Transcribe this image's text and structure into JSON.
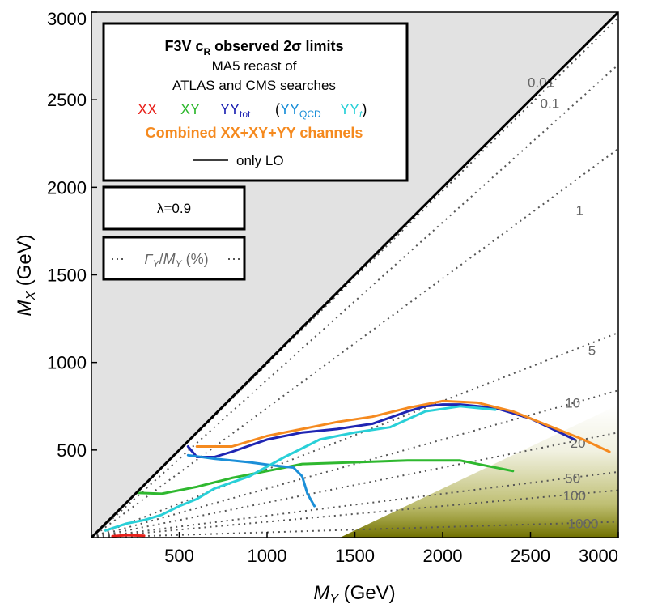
{
  "chart_data": {
    "type": "line",
    "title": "F3V c_R observed 2σ limits",
    "subtitle_lines": [
      "MA5 recast of",
      "ATLAS and CMS searches"
    ],
    "xlabel": "M_Y (GeV)",
    "ylabel": "M_X (GeV)",
    "xlim": [
      0,
      3000
    ],
    "ylim": [
      0,
      3000
    ],
    "xticks": [
      500,
      1000,
      1500,
      2000,
      2500,
      3000
    ],
    "yticks": [
      500,
      1000,
      1500,
      2000,
      2500,
      3000
    ],
    "lambda_label": "λ=0.9",
    "width_legend_label": "ΓY/MY (%)",
    "legend": {
      "xx": "XX",
      "xy": "XY",
      "yy_tot": "YYtot",
      "yy_qcd": "(YYQCD",
      "yy_t": "YYt)",
      "combined": "Combined XX+XY+YY channels",
      "only_lo": "only LO"
    },
    "width_contours": [
      {
        "label": "0.01",
        "slope": 0.99,
        "label_at": [
          2560,
          2600
        ]
      },
      {
        "label": "0.1",
        "slope": 0.9,
        "label_at": [
          2610,
          2480
        ]
      },
      {
        "label": "1",
        "slope": 0.74,
        "label_at": [
          2780,
          1870
        ]
      },
      {
        "label": "5",
        "slope": 0.39,
        "label_at": [
          2850,
          1070
        ]
      },
      {
        "label": "10",
        "slope": 0.28,
        "label_at": [
          2740,
          770
        ]
      },
      {
        "label": "20",
        "slope": 0.2,
        "label_at": [
          2770,
          540
        ]
      },
      {
        "label": "50",
        "slope": 0.125,
        "label_at": [
          2740,
          340
        ]
      },
      {
        "label": "100",
        "slope": 0.09,
        "label_at": [
          2750,
          240
        ]
      },
      {
        "label": "1000",
        "slope": 0.03,
        "label_at": [
          2800,
          80
        ]
      }
    ],
    "series": [
      {
        "name": "XX",
        "color": "#e8201a",
        "x": [
          120,
          200,
          300
        ],
        "y": [
          8,
          14,
          10
        ]
      },
      {
        "name": "XY",
        "color": "#2fb82f",
        "x": [
          260,
          400,
          600,
          800,
          1000,
          1200,
          1500,
          1800,
          2100,
          2400
        ],
        "y": [
          255,
          250,
          290,
          340,
          380,
          420,
          430,
          440,
          440,
          380
        ]
      },
      {
        "name": "YY_tot",
        "color": "#1f25b3",
        "x": [
          550,
          600,
          700,
          800,
          1000,
          1200,
          1400,
          1600,
          1800,
          1900,
          2000,
          2100,
          2300,
          2500,
          2750
        ],
        "y": [
          520,
          460,
          460,
          490,
          560,
          600,
          620,
          650,
          720,
          750,
          760,
          760,
          740,
          680,
          560
        ]
      },
      {
        "name": "YY_QCD",
        "color": "#1b8fd8",
        "x": [
          550,
          700,
          900,
          1050,
          1150,
          1200,
          1230,
          1270
        ],
        "y": [
          470,
          450,
          430,
          410,
          400,
          350,
          250,
          180
        ]
      },
      {
        "name": "YY_t",
        "color": "#29d0d8",
        "x": [
          80,
          200,
          300,
          400,
          500,
          600,
          700,
          900,
          1100,
          1300,
          1500,
          1700,
          1900,
          2100,
          2300
        ],
        "y": [
          40,
          80,
          100,
          130,
          180,
          220,
          280,
          350,
          460,
          560,
          600,
          630,
          720,
          750,
          730
        ]
      },
      {
        "name": "Combined",
        "color": "#f58a1f",
        "x": [
          600,
          800,
          1000,
          1200,
          1400,
          1600,
          1800,
          2000,
          2200,
          2400,
          2600,
          2800,
          2950
        ],
        "y": [
          520,
          520,
          580,
          620,
          660,
          690,
          740,
          780,
          770,
          720,
          640,
          560,
          490
        ]
      }
    ]
  }
}
